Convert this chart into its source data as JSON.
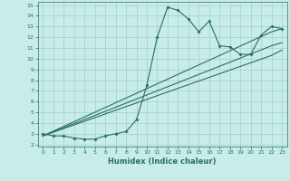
{
  "xlabel": "Humidex (Indice chaleur)",
  "bg_color": "#c8ece8",
  "grid_color": "#a0d0cc",
  "line_color": "#2a6e62",
  "xlim": [
    -0.5,
    23.5
  ],
  "ylim": [
    1.8,
    15.3
  ],
  "xticks": [
    0,
    1,
    2,
    3,
    4,
    5,
    6,
    7,
    8,
    9,
    10,
    11,
    12,
    13,
    14,
    15,
    16,
    17,
    18,
    19,
    20,
    21,
    22,
    23
  ],
  "yticks": [
    2,
    3,
    4,
    5,
    6,
    7,
    8,
    9,
    10,
    11,
    12,
    13,
    14,
    15
  ],
  "main_line_x": [
    0,
    1,
    2,
    3,
    4,
    5,
    6,
    7,
    8,
    9,
    10,
    11,
    12,
    13,
    14,
    15,
    16,
    17,
    18,
    19,
    20,
    21,
    22,
    23
  ],
  "main_line_y": [
    3.0,
    2.8,
    2.8,
    2.6,
    2.5,
    2.5,
    2.8,
    3.0,
    3.2,
    4.3,
    7.5,
    12.0,
    14.8,
    14.5,
    13.7,
    12.5,
    13.5,
    11.2,
    11.1,
    10.4,
    10.4,
    12.2,
    13.0,
    12.8
  ],
  "line2_x": [
    0,
    22,
    23
  ],
  "line2_y": [
    2.8,
    12.5,
    12.8
  ],
  "line3_x": [
    0,
    22,
    23
  ],
  "line3_y": [
    2.8,
    11.2,
    11.5
  ],
  "line4_x": [
    0,
    22,
    23
  ],
  "line4_y": [
    2.8,
    10.3,
    10.8
  ],
  "marker_x": [
    0,
    1,
    2,
    3,
    4,
    5,
    6,
    7,
    8,
    9,
    10,
    11,
    12,
    13,
    14,
    15,
    16,
    17,
    18,
    19,
    20,
    21,
    22,
    23
  ],
  "marker_y": [
    3.0,
    2.8,
    2.8,
    2.6,
    2.5,
    2.5,
    2.8,
    3.0,
    3.2,
    4.3,
    7.5,
    12.0,
    14.8,
    14.5,
    13.7,
    12.5,
    13.5,
    11.2,
    11.1,
    10.4,
    10.4,
    12.2,
    13.0,
    12.8
  ]
}
